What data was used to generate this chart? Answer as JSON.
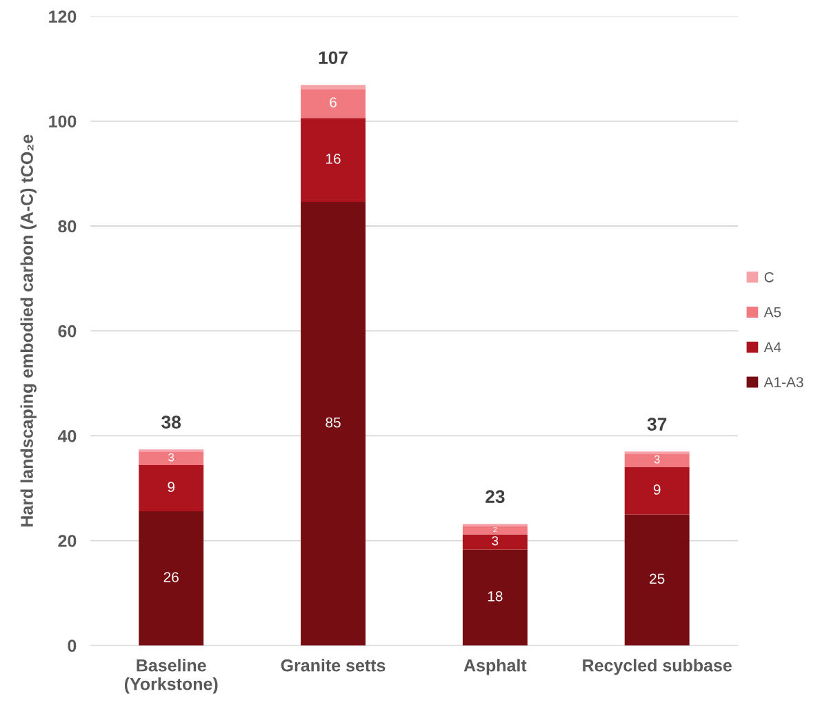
{
  "chart_data": {
    "type": "bar",
    "stacked": true,
    "ylabel": "Hard landscaping embodied carbon (A-C) tCO₂e",
    "categories": [
      "Baseline\n(Yorkstone)",
      "Granite setts",
      "Asphalt",
      "Recycled subbase"
    ],
    "series": [
      {
        "name": "A1-A3",
        "color": "#760d12",
        "values": [
          25.6,
          84.6,
          18.3,
          25.0
        ],
        "value_labels": [
          "26",
          "85",
          "18",
          "25"
        ]
      },
      {
        "name": "A4",
        "color": "#ad141e",
        "values": [
          8.8,
          16.0,
          2.9,
          9.0
        ],
        "value_labels": [
          "9",
          "16",
          "3",
          "9"
        ]
      },
      {
        "name": "A5",
        "color": "#f07a80",
        "values": [
          2.6,
          5.5,
          1.6,
          2.6
        ],
        "value_labels": [
          "3",
          "6",
          "2",
          "3"
        ]
      },
      {
        "name": "C",
        "color": "#f5a3a8",
        "values": [
          0.4,
          0.8,
          0.4,
          0.4
        ],
        "value_labels": [
          null,
          null,
          null,
          null
        ]
      }
    ],
    "totals": [
      "38",
      "107",
      "23",
      "37"
    ],
    "ylim": [
      0,
      120
    ],
    "yticks": [
      0,
      20,
      40,
      60,
      80,
      100,
      120
    ],
    "grid": "y",
    "legend": "right"
  }
}
